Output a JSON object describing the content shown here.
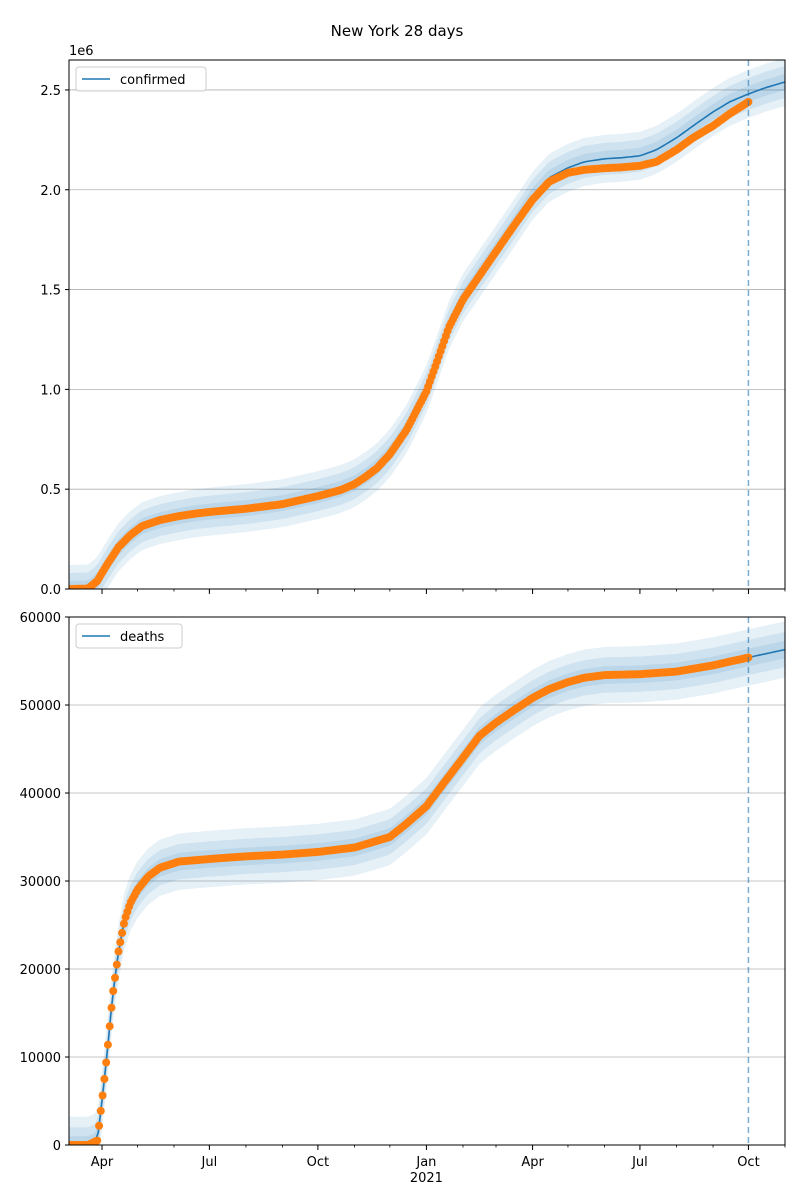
{
  "title": "New York 28 days",
  "colors": {
    "model_line": "#1f77b4",
    "observed": "#ff7f0e",
    "band": "#1f77b4",
    "grid": "#b0b0b0",
    "forecast_marker": "#1f77b4"
  },
  "x_axis": {
    "month_ticks": [
      {
        "date": "2020-04-01",
        "label": "Apr"
      },
      {
        "date": "2020-07-01",
        "label": "Jul"
      },
      {
        "date": "2020-10-01",
        "label": "Oct"
      },
      {
        "date": "2021-01-01",
        "label": "Jan"
      },
      {
        "date": "2021-04-01",
        "label": "Apr"
      },
      {
        "date": "2021-07-01",
        "label": "Jul"
      },
      {
        "date": "2021-10-01",
        "label": "Oct"
      }
    ],
    "year_label": "2021",
    "range": [
      "2020-03-04",
      "2021-11-01"
    ],
    "forecast_start": "2021-10-01"
  },
  "chart_data": [
    {
      "type": "line",
      "legend": "confirmed",
      "legend_position": "top-left",
      "y_offset_label": "1e6",
      "ylim": [
        0,
        2650000
      ],
      "y_ticks": [
        0,
        500000,
        1000000,
        1500000,
        2000000,
        2500000
      ],
      "y_tick_labels": [
        "0.0",
        "0.5",
        "1.0",
        "1.5",
        "2.0",
        "2.5"
      ],
      "grid": "horizontal",
      "model": {
        "x": [
          "2020-03-04",
          "2020-03-20",
          "2020-03-28",
          "2020-04-05",
          "2020-04-15",
          "2020-04-25",
          "2020-05-05",
          "2020-05-20",
          "2020-06-05",
          "2020-06-20",
          "2020-07-05",
          "2020-08-01",
          "2020-09-01",
          "2020-10-01",
          "2020-10-20",
          "2020-11-01",
          "2020-11-10",
          "2020-11-20",
          "2020-12-01",
          "2020-12-15",
          "2021-01-01",
          "2021-01-10",
          "2021-01-20",
          "2021-02-01",
          "2021-02-15",
          "2021-03-01",
          "2021-03-15",
          "2021-04-01",
          "2021-04-15",
          "2021-05-01",
          "2021-05-15",
          "2021-06-01",
          "2021-06-15",
          "2021-07-01",
          "2021-07-15",
          "2021-08-01",
          "2021-08-15",
          "2021-09-01",
          "2021-09-15",
          "2021-10-01",
          "2021-10-15",
          "2021-11-01"
        ],
        "y": [
          0,
          2000,
          40000,
          120000,
          210000,
          270000,
          315000,
          345000,
          365000,
          380000,
          390000,
          405000,
          430000,
          470000,
          500000,
          530000,
          565000,
          610000,
          680000,
          800000,
          1000000,
          1150000,
          1320000,
          1460000,
          1580000,
          1700000,
          1820000,
          1970000,
          2060000,
          2110000,
          2140000,
          2155000,
          2160000,
          2170000,
          2200000,
          2260000,
          2320000,
          2390000,
          2440000,
          2480000,
          2510000,
          2540000
        ],
        "bands": [
          {
            "lower": -40000,
            "upper": 40000
          },
          {
            "lower": -80000,
            "upper": 80000
          },
          {
            "lower": -120000,
            "upper": 120000
          }
        ]
      },
      "observed": {
        "x": [
          "2020-03-04",
          "2020-03-20",
          "2020-03-28",
          "2020-04-05",
          "2020-04-15",
          "2020-04-25",
          "2020-05-05",
          "2020-05-20",
          "2020-06-05",
          "2020-06-20",
          "2020-07-05",
          "2020-08-01",
          "2020-09-01",
          "2020-10-01",
          "2020-10-20",
          "2020-11-01",
          "2020-11-10",
          "2020-11-20",
          "2020-12-01",
          "2020-12-15",
          "2021-01-01",
          "2021-01-10",
          "2021-01-20",
          "2021-02-01",
          "2021-02-15",
          "2021-03-01",
          "2021-03-15",
          "2021-04-01",
          "2021-04-15",
          "2021-05-01",
          "2021-05-15",
          "2021-06-01",
          "2021-06-15",
          "2021-07-01",
          "2021-07-15",
          "2021-08-01",
          "2021-08-15",
          "2021-09-01",
          "2021-09-15",
          "2021-10-01"
        ],
        "y": [
          0,
          2000,
          40000,
          120000,
          210000,
          270000,
          315000,
          345000,
          365000,
          378000,
          388000,
          402000,
          425000,
          465000,
          495000,
          525000,
          560000,
          605000,
          675000,
          795000,
          990000,
          1140000,
          1310000,
          1450000,
          1570000,
          1690000,
          1810000,
          1950000,
          2040000,
          2085000,
          2100000,
          2108000,
          2112000,
          2120000,
          2140000,
          2200000,
          2260000,
          2320000,
          2380000,
          2440000
        ]
      }
    },
    {
      "type": "line",
      "legend": "deaths",
      "legend_position": "top-left",
      "ylim": [
        0,
        60000
      ],
      "y_ticks": [
        0,
        10000,
        20000,
        30000,
        40000,
        50000,
        60000
      ],
      "y_tick_labels": [
        "0",
        "10000",
        "20000",
        "30000",
        "40000",
        "50000",
        "60000"
      ],
      "grid": "horizontal",
      "model": {
        "x": [
          "2020-03-04",
          "2020-03-20",
          "2020-03-28",
          "2020-04-01",
          "2020-04-05",
          "2020-04-10",
          "2020-04-15",
          "2020-04-20",
          "2020-04-25",
          "2020-05-01",
          "2020-05-10",
          "2020-05-20",
          "2020-06-05",
          "2020-07-01",
          "2020-08-01",
          "2020-09-01",
          "2020-10-01",
          "2020-11-01",
          "2020-12-01",
          "2020-12-15",
          "2021-01-01",
          "2021-01-15",
          "2021-02-01",
          "2021-02-15",
          "2021-03-01",
          "2021-03-15",
          "2021-04-01",
          "2021-04-15",
          "2021-05-01",
          "2021-05-15",
          "2021-06-01",
          "2021-07-01",
          "2021-08-01",
          "2021-09-01",
          "2021-10-01",
          "2021-11-01"
        ],
        "y": [
          0,
          0,
          500,
          5000,
          10000,
          17000,
          22000,
          25500,
          27500,
          29000,
          30500,
          31500,
          32200,
          32500,
          32800,
          33000,
          33300,
          33800,
          35000,
          36500,
          38500,
          41000,
          44000,
          46500,
          48000,
          49300,
          50800,
          51800,
          52600,
          53100,
          53400,
          53500,
          53800,
          54500,
          55400,
          56300
        ],
        "bands": [
          {
            "lower": -1000,
            "upper": 1000
          },
          {
            "lower": -2000,
            "upper": 2000
          },
          {
            "lower": -3200,
            "upper": 3200
          }
        ]
      },
      "observed": {
        "x": [
          "2020-03-04",
          "2020-03-20",
          "2020-03-28",
          "2020-04-01",
          "2020-04-05",
          "2020-04-10",
          "2020-04-15",
          "2020-04-20",
          "2020-04-25",
          "2020-05-01",
          "2020-05-10",
          "2020-05-20",
          "2020-06-05",
          "2020-07-01",
          "2020-08-01",
          "2020-09-01",
          "2020-10-01",
          "2020-11-01",
          "2020-12-01",
          "2020-12-15",
          "2021-01-01",
          "2021-01-15",
          "2021-02-01",
          "2021-02-15",
          "2021-03-01",
          "2021-03-15",
          "2021-04-01",
          "2021-04-15",
          "2021-05-01",
          "2021-05-15",
          "2021-06-01",
          "2021-07-01",
          "2021-08-01",
          "2021-09-01",
          "2021-10-01"
        ],
        "y": [
          0,
          0,
          500,
          5000,
          10000,
          17000,
          22000,
          25500,
          27500,
          29000,
          30500,
          31500,
          32200,
          32500,
          32800,
          33000,
          33300,
          33800,
          35000,
          36500,
          38500,
          41000,
          44000,
          46500,
          48000,
          49300,
          50800,
          51800,
          52600,
          53100,
          53400,
          53500,
          53800,
          54500,
          55400
        ]
      }
    }
  ]
}
